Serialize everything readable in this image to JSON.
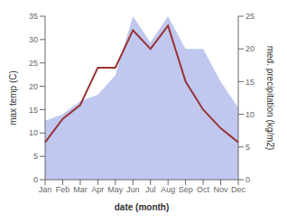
{
  "chart_data": {
    "type": "line",
    "xlabel": "date (month)",
    "ylabel": "max temp (C)",
    "y2label": "med. precipitation (kg/m2)",
    "categories": [
      "Jan",
      "Feb",
      "Mar",
      "Apr",
      "May",
      "Jun",
      "Jul",
      "Aug",
      "Sep",
      "Oct",
      "Nov",
      "Dec"
    ],
    "series": [
      {
        "type": "area",
        "axis": "y2",
        "color": "#c0c8f0",
        "values": [
          9,
          10,
          12,
          13,
          16,
          25,
          21,
          25,
          20,
          20,
          15,
          11
        ]
      },
      {
        "type": "line",
        "color": "#993333",
        "values": [
          8,
          13,
          16,
          24,
          24,
          32,
          28,
          33,
          21,
          15,
          11,
          8
        ]
      }
    ],
    "ylim": [
      0,
      35
    ],
    "yticks": [
      0,
      5,
      10,
      15,
      20,
      25,
      30,
      35
    ],
    "y2lim": [
      0,
      25
    ],
    "y2ticks": [
      0,
      5,
      10,
      15,
      20,
      25
    ],
    "grid": false
  }
}
